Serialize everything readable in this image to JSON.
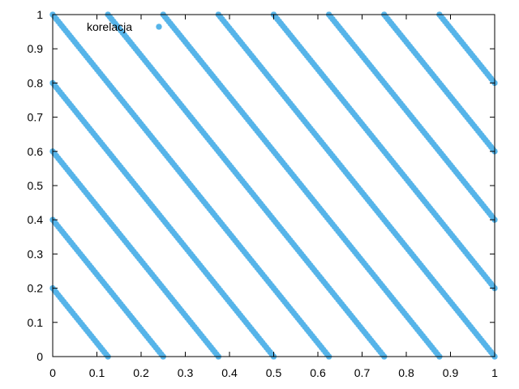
{
  "chart_data": {
    "type": "scatter",
    "title": "",
    "xlabel": "",
    "ylabel": "",
    "xlim": [
      0,
      1
    ],
    "ylim": [
      0,
      1
    ],
    "x_ticks": [
      "0",
      "0.1",
      "0.2",
      "0.3",
      "0.4",
      "0.5",
      "0.6",
      "0.7",
      "0.8",
      "0.9",
      "1"
    ],
    "y_ticks": [
      "0",
      "0.1",
      "0.2",
      "0.3",
      "0.4",
      "0.5",
      "0.6",
      "0.7",
      "0.8",
      "0.9",
      "1"
    ],
    "grid": false,
    "legend_position": "top-left",
    "marker": "asterisk",
    "series": [
      {
        "name": "korelacja",
        "color": "#56b4e9",
        "segments": [
          {
            "x": [
              0.0,
              0.125
            ],
            "y": [
              0.2,
              0.0
            ]
          },
          {
            "x": [
              0.0,
              0.25
            ],
            "y": [
              0.4,
              0.0
            ]
          },
          {
            "x": [
              0.0,
              0.375
            ],
            "y": [
              0.6,
              0.0
            ]
          },
          {
            "x": [
              0.0,
              0.5
            ],
            "y": [
              0.8,
              0.0
            ]
          },
          {
            "x": [
              0.0,
              0.625
            ],
            "y": [
              1.0,
              0.0
            ]
          },
          {
            "x": [
              0.125,
              0.75
            ],
            "y": [
              1.0,
              0.0
            ]
          },
          {
            "x": [
              0.25,
              0.875
            ],
            "y": [
              1.0,
              0.0
            ]
          },
          {
            "x": [
              0.375,
              1.0
            ],
            "y": [
              1.0,
              0.0
            ]
          },
          {
            "x": [
              0.5,
              1.0
            ],
            "y": [
              1.0,
              0.2
            ]
          },
          {
            "x": [
              0.625,
              1.0
            ],
            "y": [
              1.0,
              0.4
            ]
          },
          {
            "x": [
              0.75,
              1.0
            ],
            "y": [
              1.0,
              0.6
            ]
          },
          {
            "x": [
              0.875,
              1.0
            ],
            "y": [
              1.0,
              0.8
            ]
          }
        ]
      }
    ]
  }
}
